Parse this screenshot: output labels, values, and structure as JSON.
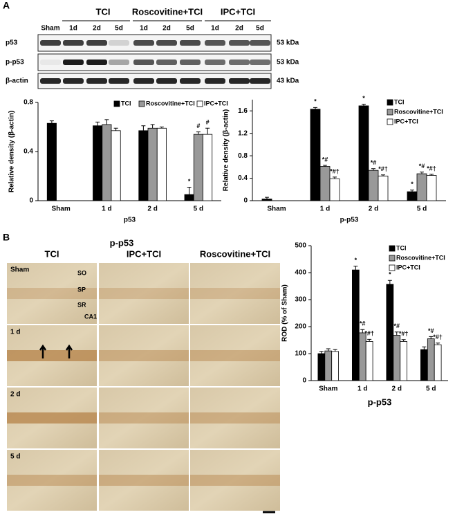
{
  "blot": {
    "panel": "A",
    "groups": [
      "TCI",
      "Roscovitine+TCI",
      "IPC+TCI"
    ],
    "lanes": [
      "Sham",
      "1d",
      "2d",
      "5d",
      "1d",
      "2d",
      "5d",
      "1d",
      "2d",
      "5d"
    ],
    "rows": [
      {
        "label": "p53",
        "size": "53 kDa"
      },
      {
        "label": "p-p53",
        "size": "53 kDa"
      },
      {
        "label": "β-actin",
        "size": "43 kDa"
      }
    ]
  },
  "micrographs": {
    "panel": "B",
    "title": "p-p53",
    "columns": [
      "TCI",
      "IPC+TCI",
      "Roscovitine+TCI"
    ],
    "rows": [
      "Sham",
      "1 d",
      "2 d",
      "5 d"
    ],
    "regions": [
      "SO",
      "SP",
      "SR",
      "CA1"
    ]
  },
  "chart_data": [
    {
      "type": "bar",
      "xlabel": "p53",
      "ylabel": "Relative density (β-actin)",
      "categories": [
        "Sham",
        "1 d",
        "2 d",
        "5 d"
      ],
      "ylim": [
        0,
        0.8
      ],
      "yticks": [
        0,
        0.4,
        0.8
      ],
      "legend": "top",
      "series": [
        {
          "name": "TCI",
          "color": "#000000",
          "values": [
            0.63,
            0.61,
            0.57,
            0.05
          ],
          "errors": [
            0.02,
            0.03,
            0.04,
            0.06
          ],
          "annotations": [
            null,
            null,
            null,
            "*"
          ]
        },
        {
          "name": "Roscovitine+TCI",
          "color": "#999999",
          "values": [
            null,
            0.62,
            0.59,
            0.54
          ],
          "errors": [
            null,
            0.04,
            0.03,
            0.02
          ],
          "annotations": [
            null,
            null,
            null,
            "#"
          ]
        },
        {
          "name": "IPC+TCI",
          "color": "#ffffff",
          "values": [
            null,
            0.57,
            0.59,
            0.54
          ],
          "errors": [
            null,
            0.02,
            0.01,
            0.05
          ],
          "annotations": [
            null,
            null,
            null,
            "#"
          ]
        }
      ]
    },
    {
      "type": "bar",
      "xlabel": "p-p53",
      "ylabel": "Relative density (β-actin)",
      "categories": [
        "Sham",
        "1 d",
        "2 d",
        "5 d"
      ],
      "ylim": [
        0,
        1.8
      ],
      "yticks": [
        0,
        0.4,
        0.8,
        1.2,
        1.6
      ],
      "legend": "upper right",
      "series": [
        {
          "name": "TCI",
          "color": "#000000",
          "values": [
            0.03,
            1.63,
            1.69,
            0.16
          ],
          "errors": [
            0.03,
            0.03,
            0.03,
            0.03
          ],
          "annotations": [
            null,
            "*",
            "*",
            "*"
          ]
        },
        {
          "name": "Roscovitine+TCI",
          "color": "#999999",
          "values": [
            null,
            0.61,
            0.54,
            0.48
          ],
          "errors": [
            null,
            0.02,
            0.03,
            0.03
          ],
          "annotations": [
            null,
            "*#",
            "*#",
            "*#"
          ]
        },
        {
          "name": "IPC+TCI",
          "color": "#ffffff",
          "values": [
            null,
            0.39,
            0.44,
            0.45
          ],
          "errors": [
            null,
            0.03,
            0.02,
            0.02
          ],
          "annotations": [
            null,
            "*#†",
            "*#†",
            "*#†"
          ]
        }
      ]
    },
    {
      "type": "bar",
      "xlabel": "p-p53",
      "ylabel": "ROD (% of Sham)",
      "categories": [
        "Sham",
        "1 d",
        "2 d",
        "5 d"
      ],
      "ylim": [
        0,
        500
      ],
      "yticks": [
        0,
        100,
        200,
        300,
        400,
        500
      ],
      "legend": "upper right",
      "series": [
        {
          "name": "TCI",
          "color": "#000000",
          "values": [
            100,
            410,
            357,
            115
          ],
          "errors": [
            8,
            14,
            14,
            10
          ],
          "annotations": [
            null,
            "*",
            "*",
            null
          ]
        },
        {
          "name": "Roscovitine+TCI",
          "color": "#999999",
          "values": [
            110,
            177,
            168,
            155
          ],
          "errors": [
            8,
            12,
            12,
            8
          ],
          "annotations": [
            null,
            "*#",
            "*#",
            "*#"
          ]
        },
        {
          "name": "IPC+TCI",
          "color": "#ffffff",
          "values": [
            108,
            145,
            145,
            133
          ],
          "errors": [
            7,
            8,
            7,
            6
          ],
          "annotations": [
            null,
            "*#†",
            "*#†",
            "*#†"
          ]
        }
      ]
    }
  ]
}
